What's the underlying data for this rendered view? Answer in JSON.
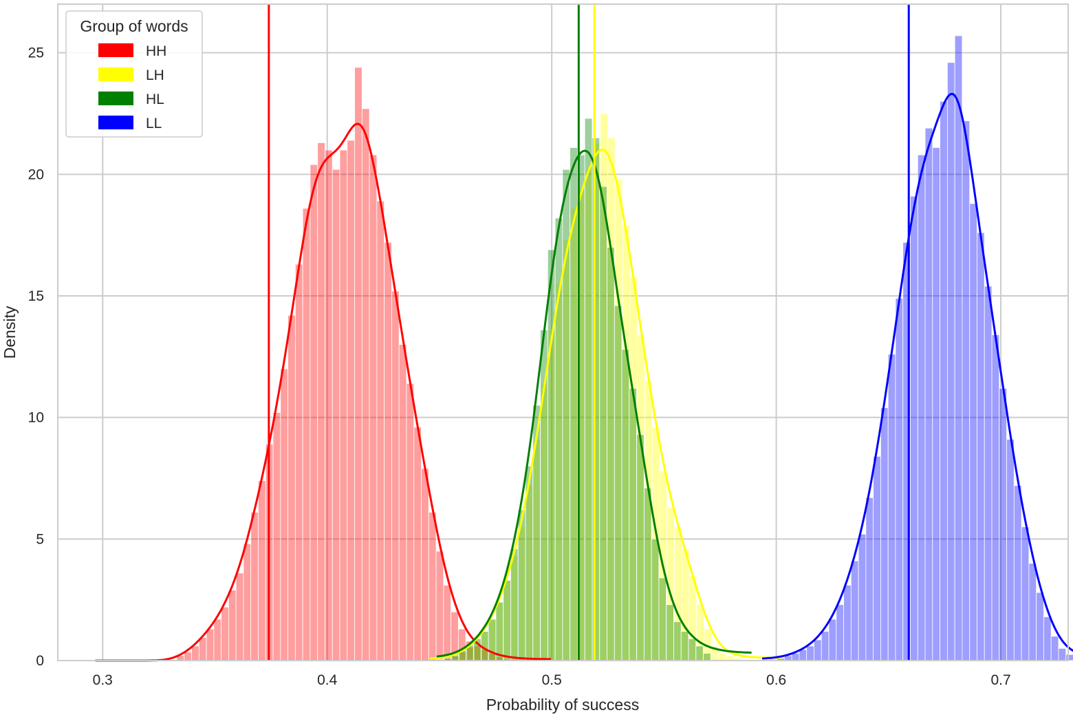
{
  "chart_data": {
    "type": "bar",
    "subtype": "overlaid histograms with KDE curves and median lines",
    "xlabel": "Probability of success",
    "ylabel": "Density",
    "xlim": [
      0.28,
      0.73
    ],
    "ylim": [
      0,
      27
    ],
    "xticks": [
      0.3,
      0.4,
      0.5,
      0.6,
      0.7
    ],
    "yticks": [
      0,
      5,
      10,
      15,
      20,
      25
    ],
    "grid": true,
    "legend": {
      "title": "Group of words",
      "placement": "top-left"
    },
    "series": [
      {
        "name": "HH",
        "color": "#ff0000",
        "median": 0.374,
        "bin_start": 0.3,
        "bin_width": 0.0033,
        "values": [
          0,
          0,
          0,
          0,
          0,
          0,
          0,
          0,
          0,
          0,
          0.2,
          0.35,
          0.6,
          0.95,
          1.3,
          1.7,
          2.2,
          2.9,
          3.6,
          4.8,
          6.1,
          7.4,
          8.9,
          10.2,
          12.0,
          14.2,
          16.3,
          18.6,
          20.4,
          21.3,
          21.0,
          20.2,
          21.0,
          21.4,
          24.4,
          22.7,
          20.8,
          18.9,
          17.2,
          15.2,
          13.0,
          11.4,
          9.6,
          7.9,
          6.1,
          4.5,
          3.1,
          2.0,
          1.3,
          0.8,
          0.6,
          0.45,
          0.3,
          0.15,
          0.05
        ]
      },
      {
        "name": "LH",
        "color": "#ffff00",
        "median": 0.519,
        "bin_start": 0.449,
        "bin_width": 0.0033,
        "values": [
          0.05,
          0.1,
          0.2,
          0.35,
          0.55,
          0.8,
          1.2,
          1.7,
          2.4,
          3.3,
          4.3,
          5.5,
          7.2,
          9.1,
          11.4,
          13.6,
          15.5,
          17.3,
          18.6,
          19.4,
          20.2,
          21.3,
          22.5,
          21.5,
          19.8,
          17.9,
          15.8,
          13.4,
          11.5,
          9.6,
          7.8,
          6.3,
          5.5,
          4.6,
          3.5,
          2.3,
          1.3,
          0.6,
          0.3,
          0.2,
          0.1
        ]
      },
      {
        "name": "HL",
        "color": "#008000",
        "median": 0.512,
        "bin_start": 0.452,
        "bin_width": 0.0033,
        "values": [
          0.1,
          0.2,
          0.4,
          0.6,
          0.9,
          1.2,
          1.7,
          2.4,
          3.3,
          4.6,
          6.2,
          8.0,
          10.5,
          13.6,
          16.9,
          18.2,
          20.2,
          21.1,
          20.8,
          22.3,
          21.5,
          19.5,
          17.0,
          14.6,
          12.8,
          11.2,
          9.3,
          7.1,
          5.0,
          3.4,
          2.3,
          1.6,
          1.2,
          0.9,
          0.6,
          0.3
        ]
      },
      {
        "name": "LL",
        "color": "#0000ff",
        "median": 0.659,
        "bin_start": 0.597,
        "bin_width": 0.0033,
        "values": [
          0.05,
          0.1,
          0.2,
          0.3,
          0.45,
          0.6,
          0.85,
          1.2,
          1.7,
          2.3,
          3.1,
          4.1,
          5.2,
          6.7,
          8.4,
          10.4,
          12.6,
          14.9,
          17.2,
          19.1,
          20.8,
          21.9,
          21.1,
          23.0,
          24.6,
          25.7,
          22.2,
          18.8,
          17.6,
          15.4,
          13.4,
          11.2,
          9.1,
          7.2,
          5.5,
          4.0,
          2.8,
          1.8,
          1.0,
          0.5,
          0.25,
          0.1
        ]
      }
    ]
  }
}
